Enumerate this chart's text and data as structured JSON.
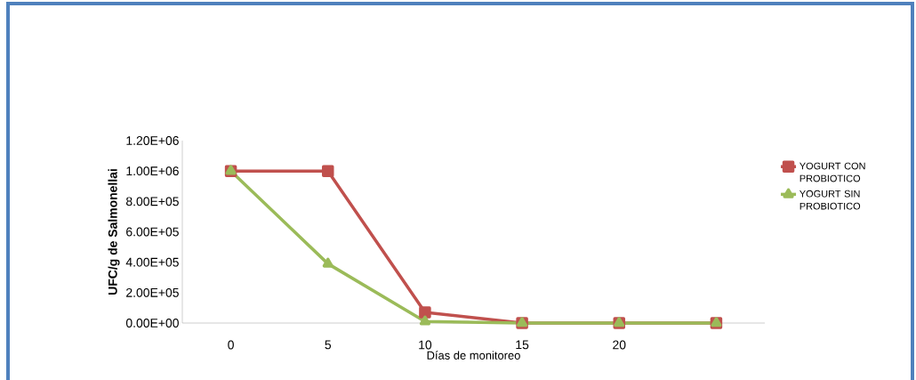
{
  "chart_data": {
    "type": "line",
    "xlabel": "Días de monitoreo",
    "ylabel": "UFC/g de Salmonellai",
    "categories": [
      "0",
      "5",
      "10",
      "15",
      "20",
      null
    ],
    "series": [
      {
        "name": "YOGURT CON PROBIOTICO",
        "color": "#c0504d",
        "marker": "square",
        "values": [
          1000000,
          1000000,
          70000,
          0,
          0,
          0
        ]
      },
      {
        "name": "YOGURT SIN PROBIOTICO",
        "color": "#9bbb59",
        "marker": "triangle",
        "values": [
          1000000,
          390000,
          10000,
          0,
          0,
          0
        ]
      }
    ],
    "ylim": [
      0,
      1200000
    ],
    "yticks": [
      {
        "value": 0,
        "label": "0.00E+00"
      },
      {
        "value": 200000,
        "label": "2.00E+05"
      },
      {
        "value": 400000,
        "label": "4.00E+05"
      },
      {
        "value": 600000,
        "label": "6.00E+05"
      },
      {
        "value": 800000,
        "label": "8.00E+05"
      },
      {
        "value": 1000000,
        "label": "1.00E+06"
      },
      {
        "value": 1200000,
        "label": "1.20E+06"
      }
    ],
    "legend": "right",
    "grid": false,
    "line_style": "solid"
  }
}
